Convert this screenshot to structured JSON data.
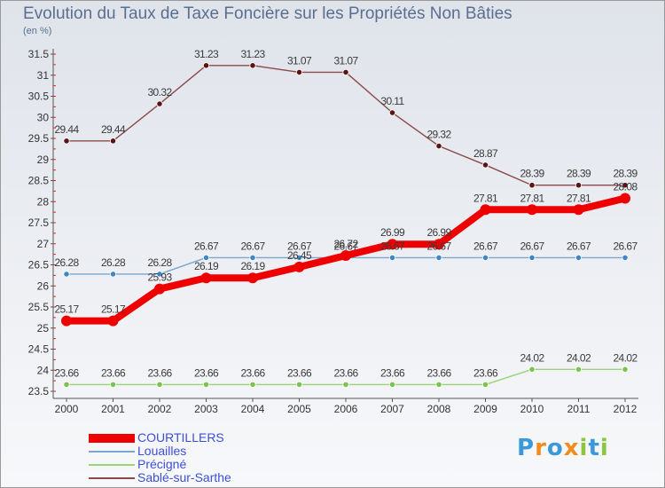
{
  "chart_data": {
    "type": "line",
    "title": "Evolution du Taux de Taxe Foncière sur les Propriétés Non Bâties",
    "subtitle": "(en %)",
    "xlabel": "",
    "ylabel": "",
    "ylim": [
      23.5,
      31.5
    ],
    "y_ticks": [
      "23.5",
      "24",
      "24.5",
      "25",
      "25.5",
      "26",
      "26.5",
      "27",
      "27.5",
      "28",
      "28.5",
      "29",
      "29.5",
      "30",
      "30.5",
      "31",
      "31.5"
    ],
    "categories": [
      "2000",
      "2001",
      "2002",
      "2003",
      "2004",
      "2005",
      "2006",
      "2007",
      "2008",
      "2009",
      "2010",
      "2011",
      "2012"
    ],
    "grid": false,
    "legend_position": "bottom-left",
    "series": [
      {
        "name": "Sablé-sur-Sarthe",
        "color": "#8b4a4a",
        "marker": "#5a1414",
        "values": [
          29.44,
          29.44,
          30.32,
          31.23,
          31.23,
          31.07,
          31.07,
          30.11,
          29.32,
          28.87,
          28.39,
          28.39,
          28.39
        ],
        "labels": [
          "29.44",
          "29.44",
          "30.32",
          "31.23",
          "31.23",
          "31.07",
          "31.07",
          "30.11",
          "29.32",
          "28.87",
          "28.39",
          "28.39",
          "28.39"
        ]
      },
      {
        "name": "Louailles",
        "color": "#7aa6cf",
        "marker": "#3f86c4",
        "values": [
          26.28,
          26.28,
          26.28,
          26.67,
          26.67,
          26.67,
          26.67,
          26.67,
          26.67,
          26.67,
          26.67,
          26.67,
          26.67
        ],
        "labels": [
          "26.28",
          "26.28",
          "26.28",
          "26.67",
          "26.67",
          "26.67",
          "26.67",
          "26.67",
          "26.67",
          "26.67",
          "26.67",
          "26.67",
          "26.67"
        ]
      },
      {
        "name": "Précigné",
        "color": "#9ad47a",
        "marker": "#78c44e",
        "values": [
          23.66,
          23.66,
          23.66,
          23.66,
          23.66,
          23.66,
          23.66,
          23.66,
          23.66,
          23.66,
          24.02,
          24.02,
          24.02
        ],
        "labels": [
          "23.66",
          "23.66",
          "23.66",
          "23.66",
          "23.66",
          "23.66",
          "23.66",
          "23.66",
          "23.66",
          "23.66",
          "24.02",
          "24.02",
          "24.02"
        ]
      },
      {
        "name": "COURTILLERS",
        "color": "#ee0000",
        "marker": "#ee0000",
        "values": [
          25.17,
          25.17,
          25.93,
          26.19,
          26.19,
          26.45,
          26.72,
          26.99,
          26.99,
          27.81,
          27.81,
          27.81,
          28.08
        ],
        "labels": [
          "25.17",
          "25.17",
          "25.93",
          "26.19",
          "26.19",
          "26.45",
          "26.72",
          "26.99",
          "26.99",
          "27.81",
          "27.81",
          "27.81",
          "28.08"
        ]
      }
    ]
  },
  "legend": {
    "items": [
      {
        "label": "COURTILLERS",
        "color": "#ee0000"
      },
      {
        "label": "Louailles",
        "color": "#7aa6cf"
      },
      {
        "label": "Précigné",
        "color": "#9ad47a"
      },
      {
        "label": "Sablé-sur-Sarthe",
        "color": "#8b4a4a"
      }
    ]
  },
  "brand": {
    "name": "Proxiti",
    "letters": [
      "P",
      "r",
      "o",
      "x",
      "i",
      "t",
      "i"
    ],
    "letter_colors": [
      "#3a9ad9",
      "#f28c1e",
      "#3a9ad9",
      "#f28c1e",
      "#8cc63f",
      "#3a9ad9",
      "#8cc63f"
    ]
  }
}
